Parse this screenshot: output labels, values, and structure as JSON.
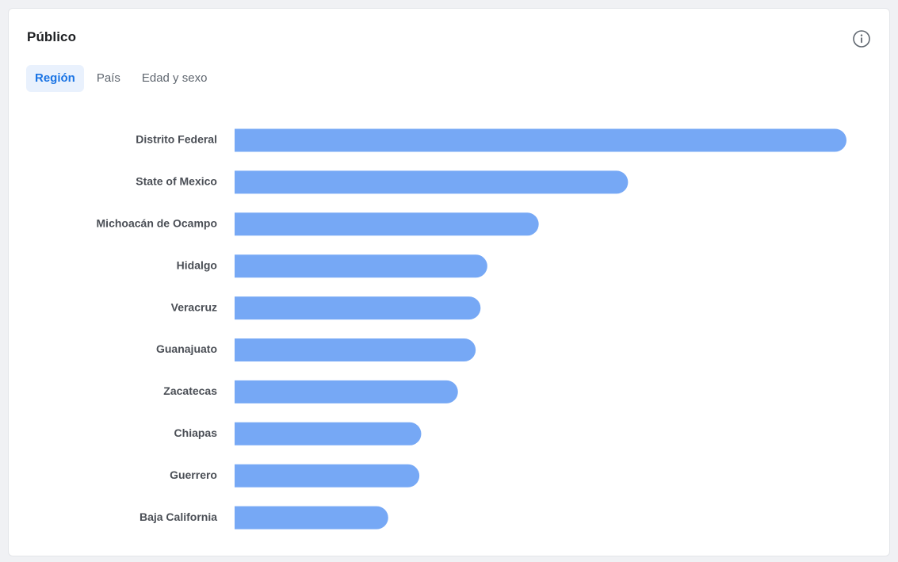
{
  "card": {
    "title": "Público",
    "info_icon": "info-circle-icon"
  },
  "tabs": [
    {
      "label": "Región",
      "active": true
    },
    {
      "label": "País",
      "active": false
    },
    {
      "label": "Edad y sexo",
      "active": false
    }
  ],
  "colors": {
    "bar": "#76a8f5",
    "accent": "#1b74e4",
    "active_tab_bg": "#e9f1fd"
  },
  "chart_data": {
    "type": "bar",
    "orientation": "horizontal",
    "categories": [
      "Distrito Federal",
      "State of Mexico",
      "Michoacán de Ocampo",
      "Hidalgo",
      "Veracruz",
      "Guanajuato",
      "Zacatecas",
      "Chiapas",
      "Guerrero",
      "Baja California"
    ],
    "values": [
      100,
      64.3,
      49.7,
      41.3,
      40.2,
      39.4,
      36.5,
      30.5,
      30.2,
      25.1
    ],
    "xlim": [
      0,
      100
    ],
    "grid": false,
    "legend": "none"
  }
}
